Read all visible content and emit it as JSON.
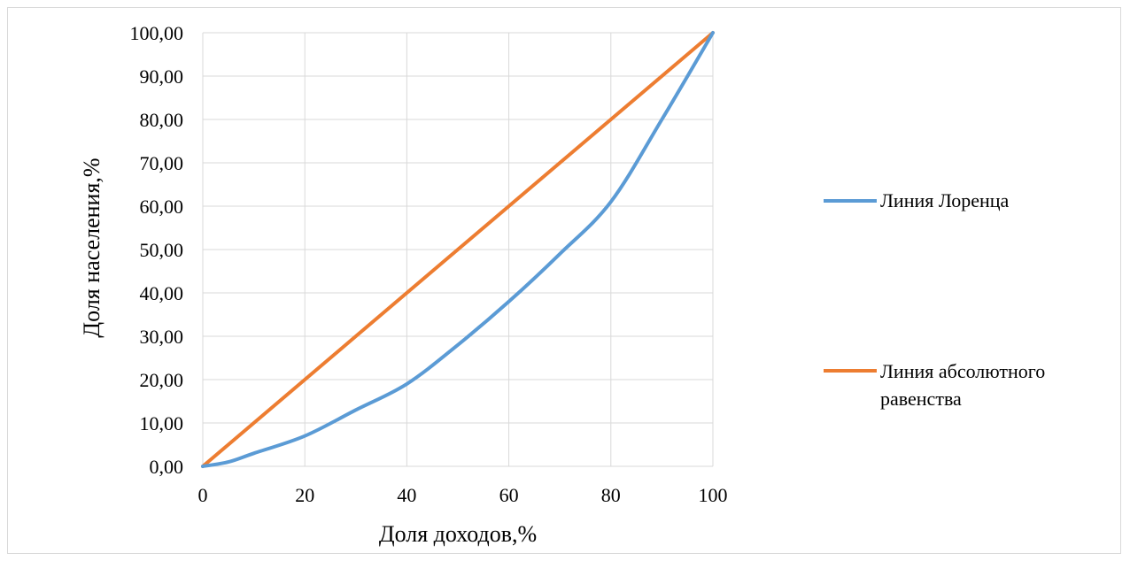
{
  "chart_data": {
    "type": "line",
    "title": "",
    "xlabel": "Доля доходов,%",
    "ylabel": "Доля населения,%",
    "xlim": [
      0,
      100
    ],
    "ylim": [
      0,
      100
    ],
    "x_ticks": [
      "0",
      "20",
      "40",
      "60",
      "80",
      "100"
    ],
    "y_ticks": [
      "0,00",
      "10,00",
      "20,00",
      "30,00",
      "40,00",
      "50,00",
      "60,00",
      "70,00",
      "80,00",
      "90,00",
      "100,00"
    ],
    "grid": true,
    "legend_position": "right",
    "series": [
      {
        "name": "Линия Лоренца",
        "color": "#5B9BD5",
        "x": [
          0,
          5,
          10,
          20,
          30,
          40,
          50,
          60,
          70,
          80,
          90,
          100
        ],
        "y": [
          0,
          1,
          3,
          7,
          13,
          19,
          28,
          38,
          49,
          61,
          80,
          100
        ]
      },
      {
        "name_lines": [
          "Линия абсолютного",
          "равенства"
        ],
        "color": "#ED7D31",
        "x": [
          0,
          100
        ],
        "y": [
          0,
          100
        ]
      }
    ]
  }
}
